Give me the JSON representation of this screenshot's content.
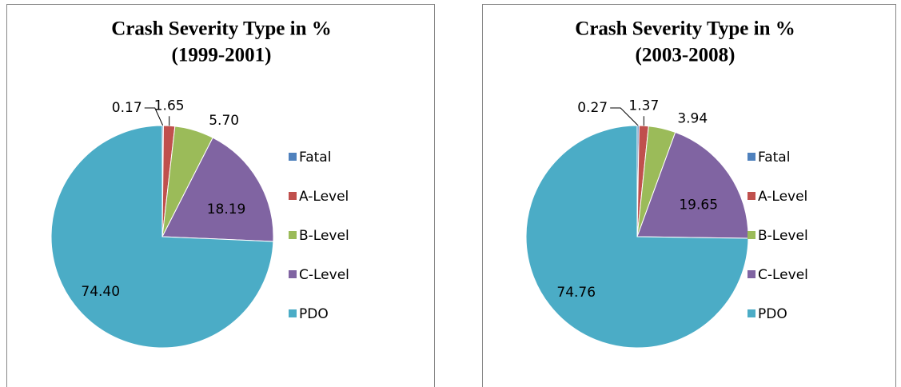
{
  "chart_data": [
    {
      "type": "pie",
      "title": "Crash Severity Type in %",
      "subtitle": "(1999-2001)",
      "categories": [
        "Fatal",
        "A-Level",
        "B-Level",
        "C-Level",
        "PDO"
      ],
      "values": [
        0.17,
        1.65,
        5.7,
        18.19,
        74.4
      ],
      "value_labels": [
        "0.17",
        "1.65",
        "5.70",
        "18.19",
        "74.40"
      ],
      "colors": [
        "#4f81bd",
        "#c0504d",
        "#9bbb59",
        "#8064a2",
        "#4bacc6"
      ],
      "legend": "right"
    },
    {
      "type": "pie",
      "title": "Crash Severity Type in %",
      "subtitle": "(2003-2008)",
      "categories": [
        "Fatal",
        "A-Level",
        "B-Level",
        "C-Level",
        "PDO"
      ],
      "values": [
        0.27,
        1.37,
        3.94,
        19.65,
        74.76
      ],
      "colors": [
        "#4f81bd",
        "#c0504d",
        "#9bbb59",
        "#8064a2",
        "#4bacc6"
      ],
      "legend": "right"
    }
  ]
}
